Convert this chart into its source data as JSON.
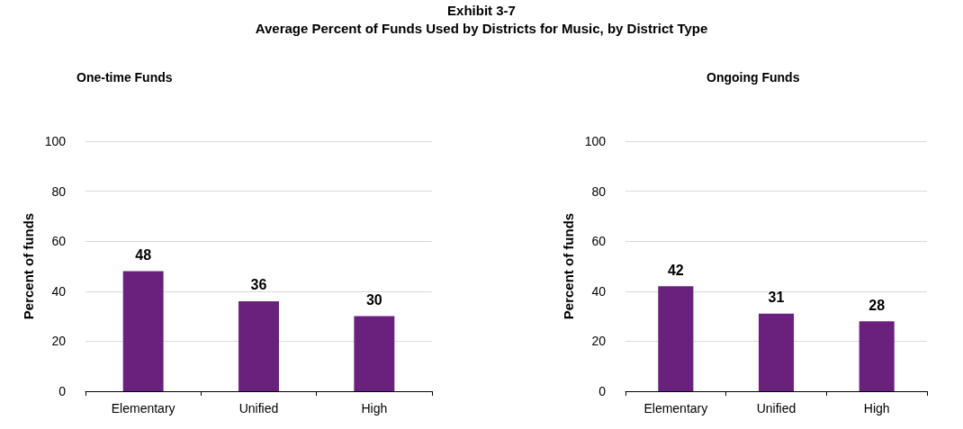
{
  "chart_data": [
    {
      "type": "bar",
      "annotations": [
        "Exhibit 3-7",
        "Average Percent of Funds Used by Districts for Music, by District Type"
      ],
      "title": "One-time Funds",
      "ylabel": "Percent of funds",
      "categories": [
        "Elementary",
        "Unified",
        "High"
      ],
      "values": [
        48,
        36,
        30
      ],
      "color": "#6a207d",
      "ylim": [
        0,
        100
      ],
      "yticks": [
        0,
        20,
        40,
        60,
        80,
        100
      ],
      "grid": "y",
      "data_labels": true
    },
    {
      "type": "bar",
      "title": "Ongoing Funds",
      "ylabel": "Percent of funds",
      "categories": [
        "Elementary",
        "Unified",
        "High"
      ],
      "values": [
        42,
        31,
        28
      ],
      "color": "#6a207d",
      "ylim": [
        0,
        100
      ],
      "yticks": [
        0,
        20,
        40,
        60,
        80,
        100
      ],
      "grid": "y",
      "data_labels": true
    }
  ]
}
